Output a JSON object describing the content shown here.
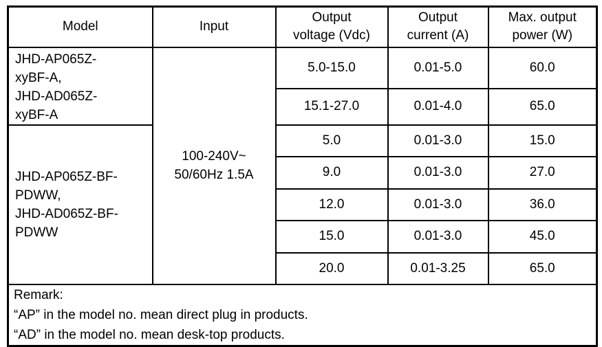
{
  "table": {
    "headers": {
      "model": "Model",
      "input": "Input",
      "output_voltage": "Output\nvoltage (Vdc)",
      "output_current": "Output\ncurrent (A)",
      "max_power": "Max. output\npower (W)"
    },
    "model_groups": [
      {
        "label": "JHD-AP065Z-\nxyBF-A,\nJHD-AD065Z-\nxyBF-A"
      },
      {
        "label": "JHD-AP065Z-BF-\nPDWW,\nJHD-AD065Z-BF-\nPDWW"
      }
    ],
    "input_value": "100-240V~\n50/60Hz 1.5A",
    "rows": [
      {
        "voltage": "5.0-15.0",
        "current": "0.01-5.0",
        "power": "60.0"
      },
      {
        "voltage": "15.1-27.0",
        "current": "0.01-4.0",
        "power": "65.0"
      },
      {
        "voltage": "5.0",
        "current": "0.01-3.0",
        "power": "15.0"
      },
      {
        "voltage": "9.0",
        "current": "0.01-3.0",
        "power": "27.0"
      },
      {
        "voltage": "12.0",
        "current": "0.01-3.0",
        "power": "36.0"
      },
      {
        "voltage": "15.0",
        "current": "0.01-3.0",
        "power": "45.0"
      },
      {
        "voltage": "20.0",
        "current": "0.01-3.25",
        "power": "65.0"
      }
    ],
    "remark": {
      "lines": [
        "Remark:",
        "“AP” in the model no. mean direct plug in products.",
        "“AD” in the model no. mean desk-top products."
      ]
    }
  }
}
